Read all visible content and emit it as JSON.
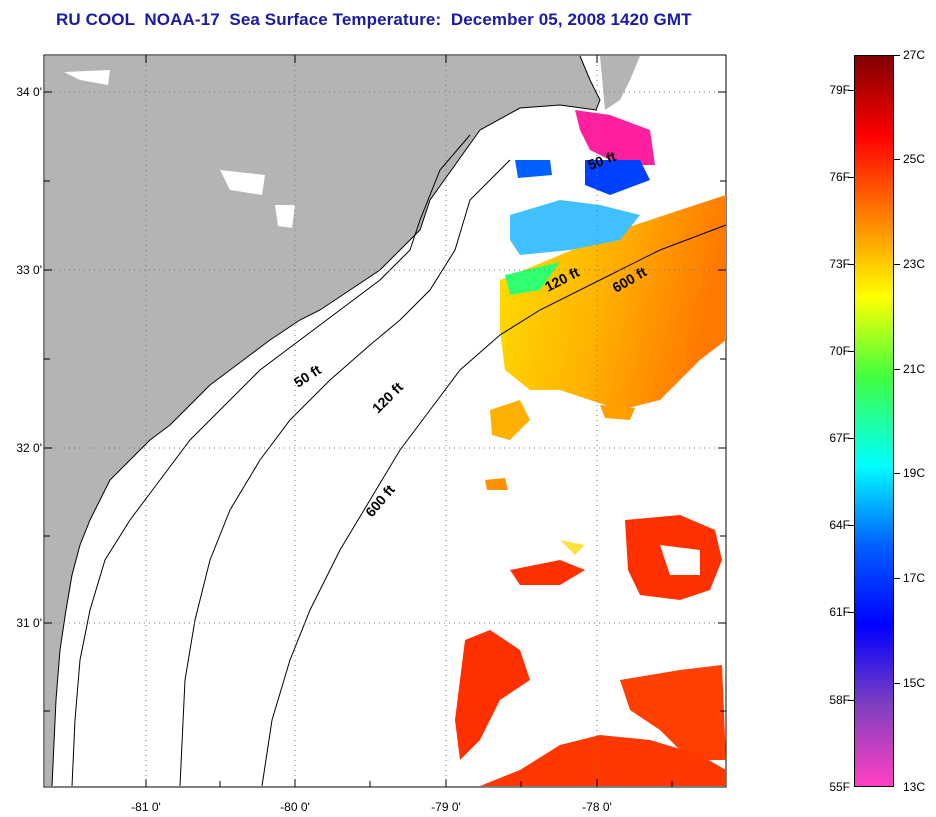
{
  "title": "RU COOL  NOAA-17  Sea Surface Temperature:  December 05, 2008 1420 GMT",
  "map": {
    "lat_labels": [
      "34 0'",
      "33 0'",
      "32 0'",
      "31 0'"
    ],
    "lon_labels": [
      "-81 0'",
      "-80 0'",
      "-79 0'",
      "-78 0'"
    ],
    "land_color": "#b4b4b4",
    "no_data_color": "#ffffff",
    "isobaths": [
      {
        "label": "50 ft"
      },
      {
        "label": "120 ft"
      },
      {
        "label": "600 ft"
      },
      {
        "label": "50 ft"
      },
      {
        "label": "120 ft"
      },
      {
        "label": "600 ft"
      }
    ]
  },
  "colorbar": {
    "fahrenheit_labels": [
      "79F",
      "76F",
      "73F",
      "70F",
      "67F",
      "64F",
      "61F",
      "58F",
      "55F"
    ],
    "celsius_labels": [
      "27C",
      "25C",
      "23C",
      "21C",
      "19C",
      "17C",
      "15C",
      "13C"
    ],
    "colors_top_to_bottom": [
      "#800000",
      "#ff0000",
      "#ff8000",
      "#ffff00",
      "#40ff40",
      "#00ffff",
      "#0060ff",
      "#0000ff",
      "#8040c0",
      "#ff40c0"
    ]
  }
}
